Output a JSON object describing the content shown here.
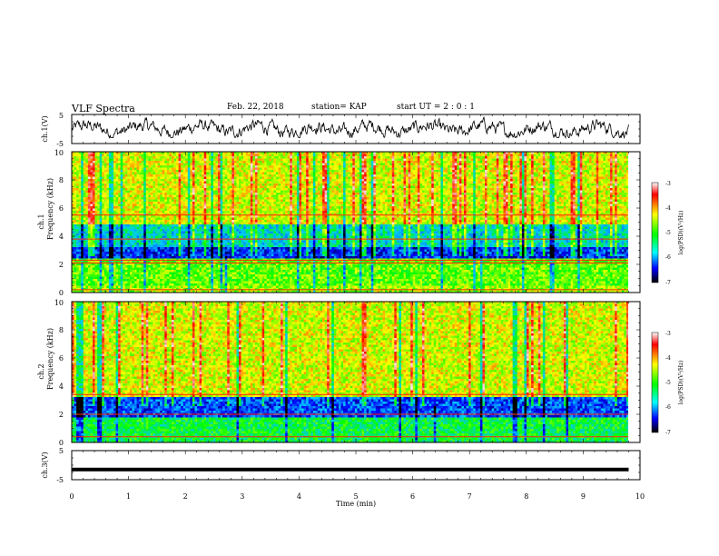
{
  "header": {
    "title": "VLF Spectra",
    "date": "Feb. 22, 2018",
    "station": "station= KAP",
    "start": "start  UT =   2 : 0  : 1"
  },
  "chart_data": [
    {
      "type": "line",
      "panel": "ch1-waveform",
      "ylabel": "ch.1(V)",
      "ylim": [
        -5,
        5
      ],
      "yticks": [
        -5,
        5
      ],
      "xlim": [
        0,
        10
      ],
      "series": [
        {
          "values": [
            -2.8,
            4.2
          ],
          "mean": 0.0,
          "note_range": [
            -2.8,
            4.2
          ]
        }
      ]
    },
    {
      "type": "heatmap",
      "panel": "ch1-spectrogram",
      "ylabel_top": "ch.1",
      "ylabel": "Frequency (kHz)",
      "ylim": [
        0,
        10
      ],
      "yticks": [
        0,
        2,
        4,
        6,
        8,
        10
      ],
      "xlim": [
        0,
        10
      ],
      "data_end_min": 9.8,
      "colorbar": {
        "label": "log(PSD)(V²/Hz)",
        "ticks": [
          -3,
          -4,
          -5,
          -6,
          -7
        ],
        "range": [
          -7,
          -3
        ]
      },
      "bands_khz": [
        {
          "f0": 0,
          "f1": 0.5,
          "level": -4.6
        },
        {
          "f0": 0.5,
          "f1": 2.5,
          "level": -4.8
        },
        {
          "f0": 2.5,
          "f1": 3.3,
          "level": -6.3
        },
        {
          "f0": 3.3,
          "f1": 4.8,
          "level": -5.6
        },
        {
          "f0": 4.8,
          "f1": 10,
          "level": -4.4
        }
      ],
      "lines_khz": [
        5.5,
        3.8,
        2.3,
        2.1,
        0.2
      ]
    },
    {
      "type": "heatmap",
      "panel": "ch2-spectrogram",
      "ylabel_top": "ch.2",
      "ylabel": "Frequency (kHz)",
      "ylim": [
        0,
        10
      ],
      "yticks": [
        0,
        2,
        4,
        6,
        8,
        10
      ],
      "xlim": [
        0,
        10
      ],
      "data_end_min": 9.8,
      "colorbar": {
        "label": "log(PSD)(V²/Hz)",
        "ticks": [
          -3,
          -4,
          -5,
          -6,
          -7
        ],
        "range": [
          -7,
          -3
        ]
      },
      "bands_khz": [
        {
          "f0": 0,
          "f1": 1.8,
          "level": -5.2
        },
        {
          "f0": 1.8,
          "f1": 3.3,
          "level": -6.2
        },
        {
          "f0": 3.3,
          "f1": 10,
          "level": -4.4
        }
      ],
      "lines_khz": [
        3.4,
        2.0,
        0.4
      ]
    },
    {
      "type": "line",
      "panel": "ch3-waveform",
      "ylabel": "ch.3(V)",
      "ylim": [
        -5,
        5
      ],
      "yticks": [
        -5,
        5
      ],
      "xlabel": "Time (min)",
      "xlim": [
        0,
        10
      ],
      "xticks": [
        0,
        1,
        2,
        3,
        4,
        5,
        6,
        7,
        8,
        9,
        10
      ],
      "series": [
        {
          "constant": -1.5,
          "end_min": 9.8
        }
      ]
    }
  ]
}
